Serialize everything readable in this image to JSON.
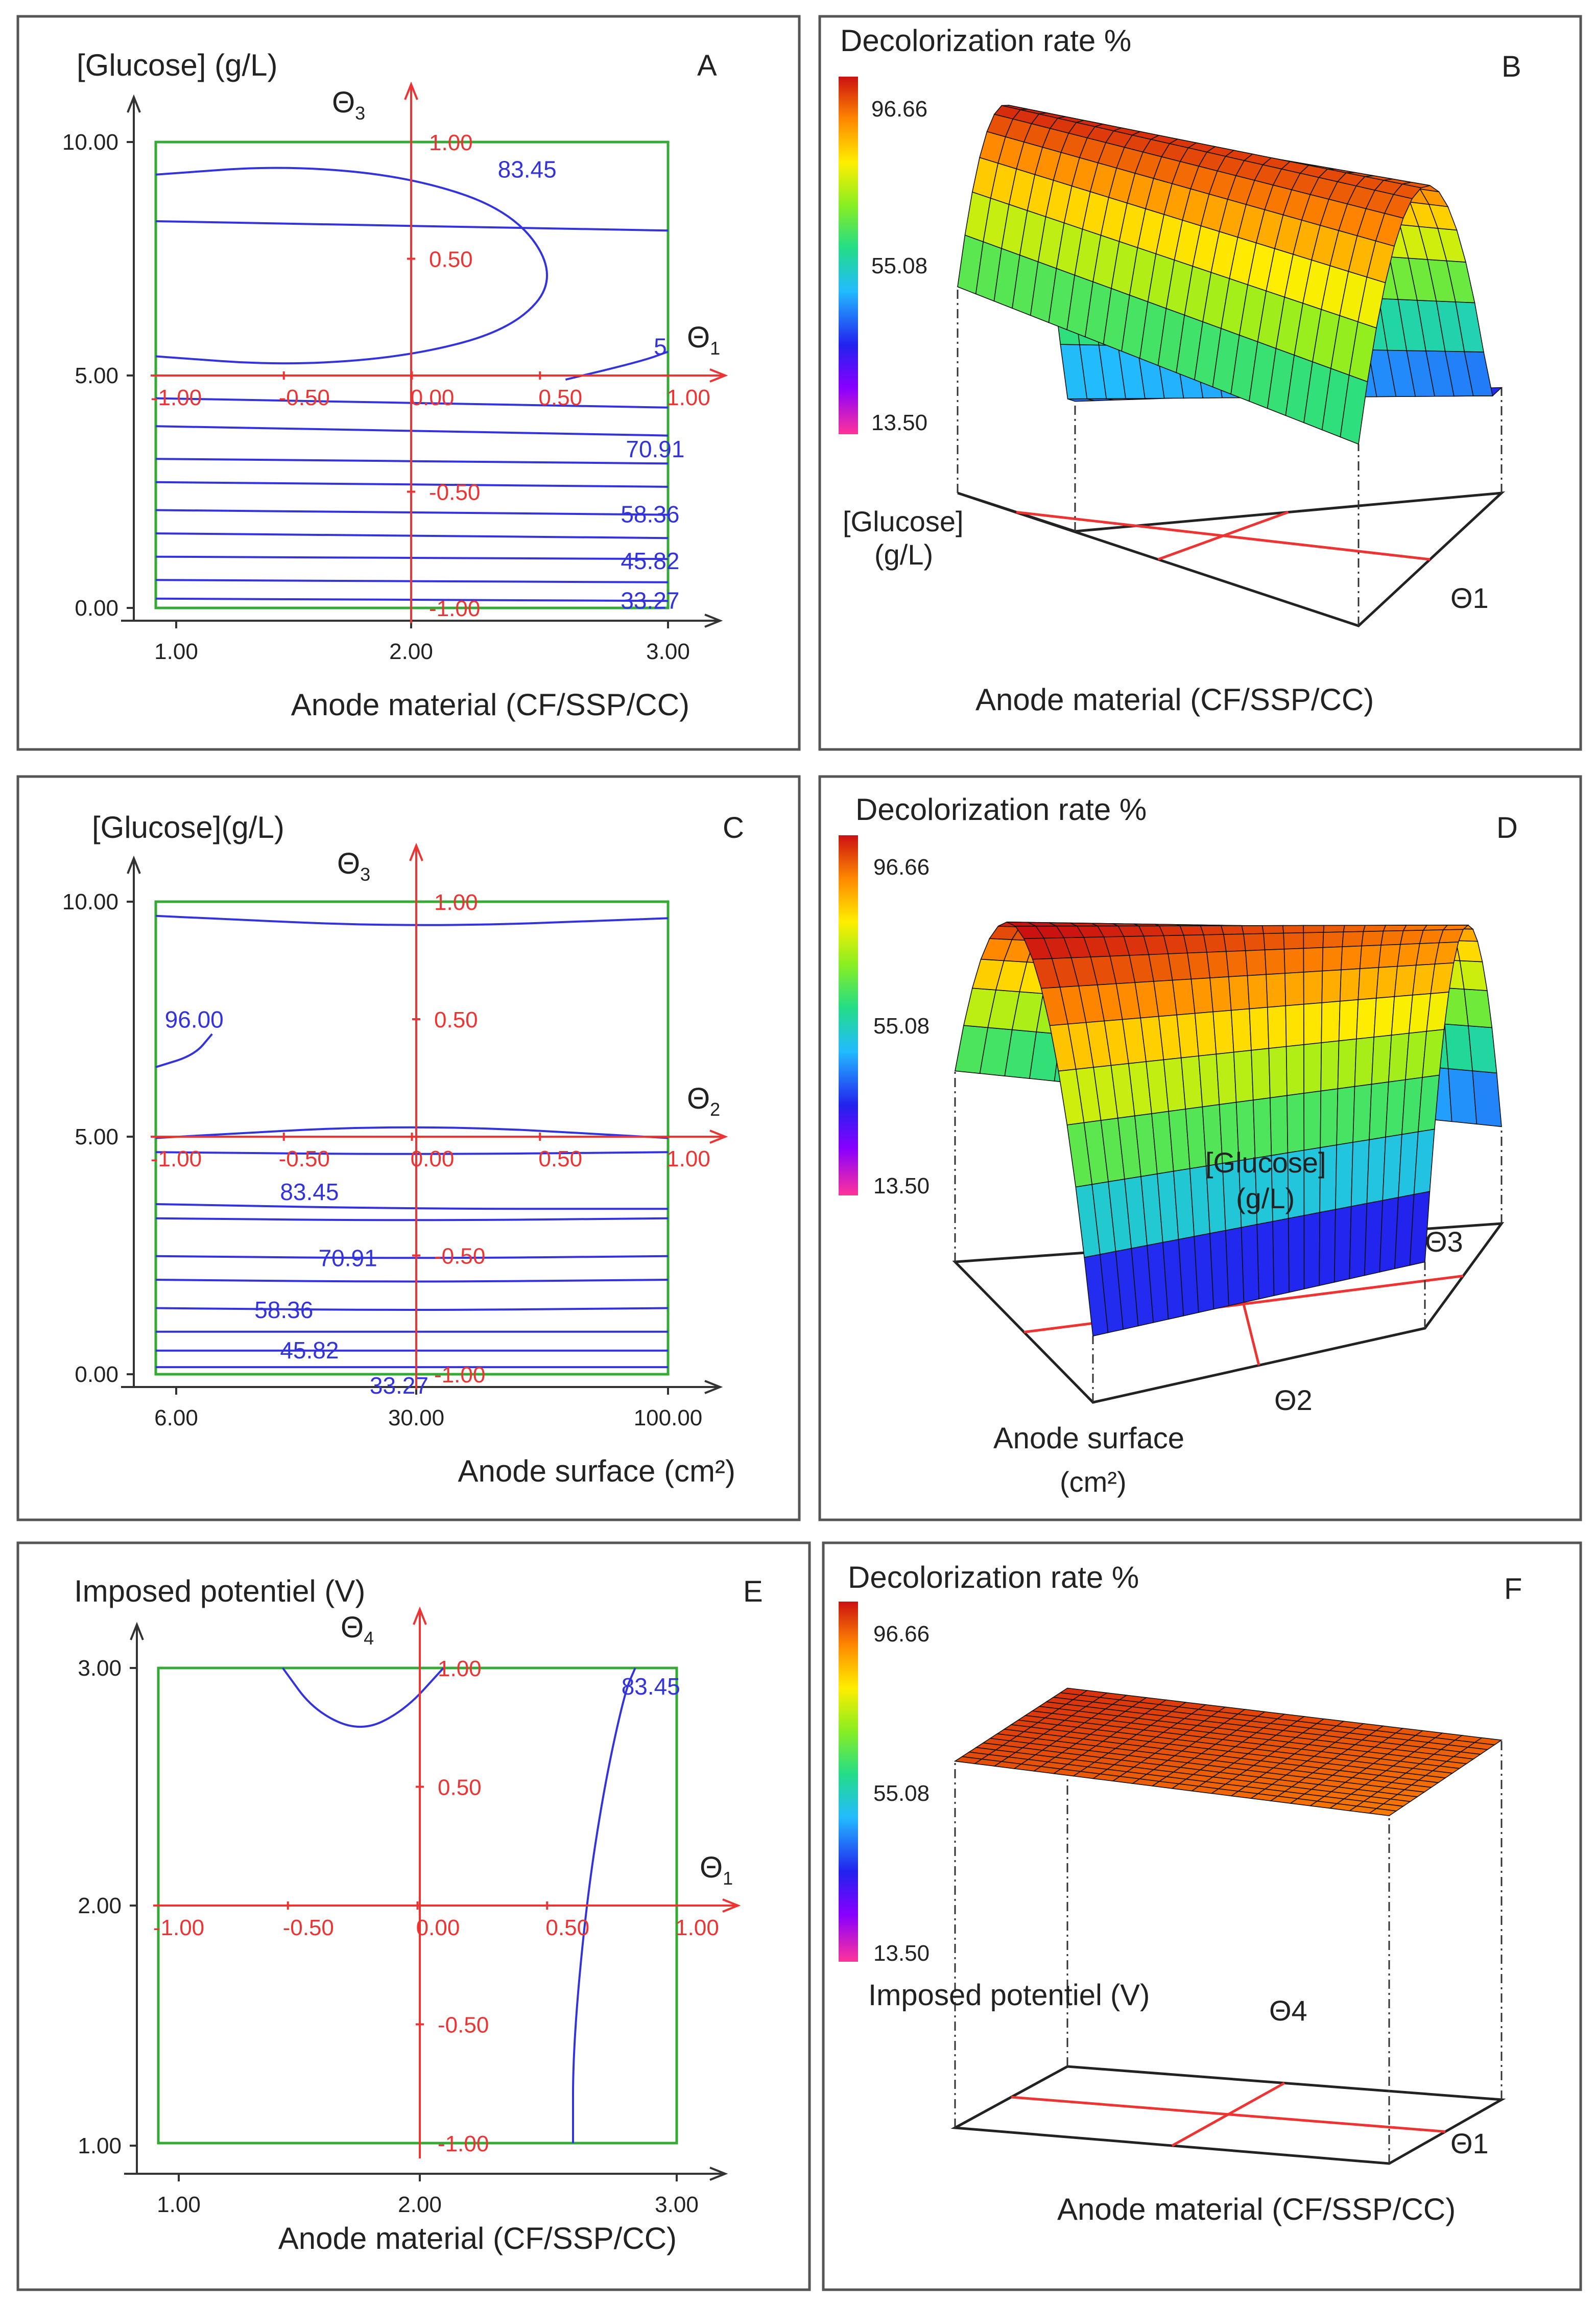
{
  "colors": {
    "contour": "#3333dd",
    "coded_axis": "#ee3333",
    "design_box": "#33aa33",
    "axis": "#333333",
    "frame": "#555555",
    "colorbar_stops": [
      "#ff3399",
      "#8800ff",
      "#2222ee",
      "#22bbff",
      "#22dd88",
      "#88ee22",
      "#ffee00",
      "#ff8800",
      "#cc1111"
    ]
  },
  "chart_data": [
    {
      "id": "A",
      "type": "contour",
      "panel_letter": "A",
      "ylabel": "[Glucose] (g/L)",
      "xlabel": "Anode material (CF/SSP/CC)",
      "x_ticks": [
        "1.00",
        "2.00",
        "3.00"
      ],
      "y_ticks": [
        "0.00",
        "5.00",
        "10.00"
      ],
      "xlim": [
        1,
        3
      ],
      "ylim": [
        0,
        10
      ],
      "coded_x_label": "Θ1",
      "coded_y_label": "Θ3",
      "coded_x_ticks": [
        "-1.00",
        "-0.50",
        "0.00",
        "0.50",
        "1.00"
      ],
      "coded_y_ticks": [
        "-1.00",
        "-0.50",
        "0.50",
        "1.00"
      ],
      "contour_labels": [
        {
          "text": "83.45",
          "x": 2.45,
          "y": 9.4
        },
        {
          "text": "70.91",
          "x": 2.95,
          "y": 3.4
        },
        {
          "text": "58.36",
          "x": 2.93,
          "y": 2.0
        },
        {
          "text": "45.82",
          "x": 2.93,
          "y": 1.0
        },
        {
          "text": "33.27",
          "x": 2.93,
          "y": 0.15
        },
        {
          "text": "5",
          "x": 2.97,
          "y": 5.6
        }
      ],
      "contours": [
        [
          [
            1,
            9.3
          ],
          [
            1.5,
            9.5
          ],
          [
            2.0,
            9.25
          ],
          [
            2.4,
            8.5
          ],
          [
            2.57,
            7.1
          ],
          [
            2.4,
            6.0
          ],
          [
            2.0,
            5.4
          ],
          [
            1.5,
            5.2
          ],
          [
            1,
            5.4
          ]
        ],
        [
          [
            2.6,
            4.9
          ],
          [
            2.9,
            5.3
          ],
          [
            3.0,
            5.5
          ]
        ],
        [
          [
            1,
            8.3
          ],
          [
            3,
            8.1
          ]
        ],
        [
          [
            1,
            4.5
          ],
          [
            3,
            4.3
          ]
        ],
        [
          [
            1,
            3.9
          ],
          [
            3,
            3.7
          ]
        ],
        [
          [
            1,
            3.2
          ],
          [
            3,
            3.1
          ]
        ],
        [
          [
            1,
            2.7
          ],
          [
            3,
            2.6
          ]
        ],
        [
          [
            1,
            2.1
          ],
          [
            3,
            2.0
          ]
        ],
        [
          [
            1,
            1.6
          ],
          [
            3,
            1.5
          ]
        ],
        [
          [
            1,
            1.1
          ],
          [
            3,
            1.05
          ]
        ],
        [
          [
            1,
            0.6
          ],
          [
            3,
            0.55
          ]
        ],
        [
          [
            1,
            0.2
          ],
          [
            3,
            0.15
          ]
        ]
      ]
    },
    {
      "id": "B",
      "type": "surface",
      "panel_letter": "B",
      "title": "Decolorization rate %",
      "colorbar_ticks": [
        "96.66",
        "55.08",
        "13.50"
      ],
      "colorbar_range": [
        13.5,
        96.66
      ],
      "axis_depth_label": "[Glucose]",
      "axis_depth_label2": "(g/L)",
      "axis_right_label": "Θ1",
      "xlabel": "Anode material (CF/SSP/CC)",
      "z_low": [
        40,
        35
      ],
      "z_high": [
        96,
        92
      ]
    },
    {
      "id": "C",
      "type": "contour",
      "panel_letter": "C",
      "ylabel": "[Glucose](g/L)",
      "xlabel": "Anode surface (cm²)",
      "x_ticks": [
        "6.00",
        "30.00",
        "100.00"
      ],
      "y_ticks": [
        "0.00",
        "5.00",
        "10.00"
      ],
      "xlim": [
        0,
        2
      ],
      "ylim": [
        0,
        10
      ],
      "coded_x_label": "Θ2",
      "coded_y_label": "Θ3",
      "coded_x_ticks": [
        "-1.00",
        "-0.50",
        "0.00",
        "0.50",
        "1.00"
      ],
      "coded_y_ticks": [
        "-1.00",
        "-0.50",
        "0.50",
        "1.00"
      ],
      "contour_labels": [
        {
          "text": "96.00",
          "x": 0.15,
          "y": 7.5
        },
        {
          "text": "83.45",
          "x": 0.6,
          "y": 3.85
        },
        {
          "text": "70.91",
          "x": 0.75,
          "y": 2.45
        },
        {
          "text": "58.36",
          "x": 0.5,
          "y": 1.35
        },
        {
          "text": "45.82",
          "x": 0.6,
          "y": 0.5
        },
        {
          "text": "33.27",
          "x": 0.95,
          "y": -0.25
        }
      ],
      "contours": [
        [
          [
            0,
            9.7
          ],
          [
            1.0,
            9.45
          ],
          [
            2.0,
            9.65
          ]
        ],
        [
          [
            0,
            6.5
          ],
          [
            0.15,
            6.75
          ],
          [
            0.22,
            7.2
          ]
        ],
        [
          [
            0,
            5.0
          ],
          [
            1.0,
            5.3
          ],
          [
            2.0,
            5.0
          ]
        ],
        [
          [
            0,
            4.7
          ],
          [
            1.0,
            4.65
          ],
          [
            2.0,
            4.7
          ]
        ],
        [
          [
            0,
            3.6
          ],
          [
            1.0,
            3.5
          ],
          [
            2.0,
            3.5
          ]
        ],
        [
          [
            0,
            3.3
          ],
          [
            1.0,
            3.25
          ],
          [
            2.0,
            3.3
          ]
        ],
        [
          [
            0,
            2.5
          ],
          [
            1.0,
            2.45
          ],
          [
            2.0,
            2.5
          ]
        ],
        [
          [
            0,
            2.0
          ],
          [
            1.0,
            1.95
          ],
          [
            2.0,
            2.0
          ]
        ],
        [
          [
            0,
            1.4
          ],
          [
            1.0,
            1.35
          ],
          [
            2.0,
            1.4
          ]
        ],
        [
          [
            0,
            0.9
          ],
          [
            1.0,
            0.9
          ],
          [
            2.0,
            0.9
          ]
        ],
        [
          [
            0,
            0.5
          ],
          [
            1.0,
            0.5
          ],
          [
            2.0,
            0.5
          ]
        ],
        [
          [
            0,
            0.15
          ],
          [
            1.0,
            0.15
          ],
          [
            2.0,
            0.15
          ]
        ]
      ]
    },
    {
      "id": "D",
      "type": "surface",
      "panel_letter": "D",
      "title": "Decolorization rate %",
      "colorbar_ticks": [
        "96.66",
        "55.08",
        "13.50"
      ],
      "colorbar_range": [
        13.5,
        96.66
      ],
      "axis_depth_label": "[Glucose]",
      "axis_depth_label2": "(g/L)",
      "axis_right_label": "Θ3",
      "axis_front_label": "Θ2",
      "xlabel": "Anode surface",
      "xlabel2": "(cm²)",
      "z_low": [
        20,
        70
      ],
      "z_high": [
        98,
        94
      ]
    },
    {
      "id": "E",
      "type": "contour",
      "panel_letter": "E",
      "ylabel": "Imposed potentiel (V)",
      "xlabel": "Anode material (CF/SSP/CC)",
      "x_ticks": [
        "1.00",
        "2.00",
        "3.00"
      ],
      "y_ticks": [
        "1.00",
        "2.00",
        "3.00"
      ],
      "xlim": [
        1,
        3
      ],
      "ylim": [
        1,
        3
      ],
      "coded_x_label": "Θ1",
      "coded_y_label": "Θ4",
      "coded_x_ticks": [
        "-1.00",
        "-0.50",
        "0.00",
        "0.50",
        "1.00"
      ],
      "coded_y_ticks": [
        "-1.00",
        "-0.50",
        "0.50",
        "1.00"
      ],
      "contour_labels": [
        {
          "text": "83.45",
          "x": 2.9,
          "y": 2.92
        }
      ],
      "contours": [
        [
          [
            1.48,
            3.0
          ],
          [
            1.6,
            2.82
          ],
          [
            1.78,
            2.73
          ],
          [
            1.95,
            2.82
          ],
          [
            2.1,
            3.0
          ]
        ],
        [
          [
            2.6,
            1.0
          ],
          [
            2.6,
            1.4
          ],
          [
            2.65,
            2.0
          ],
          [
            2.72,
            2.5
          ],
          [
            2.8,
            2.9
          ],
          [
            2.84,
            3.0
          ]
        ]
      ]
    },
    {
      "id": "F",
      "type": "surface",
      "panel_letter": "F",
      "title": "Decolorization rate %",
      "colorbar_ticks": [
        "96.66",
        "55.08",
        "13.50"
      ],
      "colorbar_range": [
        13.5,
        96.66
      ],
      "axis_depth_label": "Imposed potentiel (V)",
      "axis_right_label": "Θ1",
      "axis_top_label": "Θ4",
      "xlabel": "Anode material (CF/SSP/CC)",
      "z_low": [
        89,
        86
      ],
      "z_high": [
        94,
        90
      ]
    }
  ]
}
